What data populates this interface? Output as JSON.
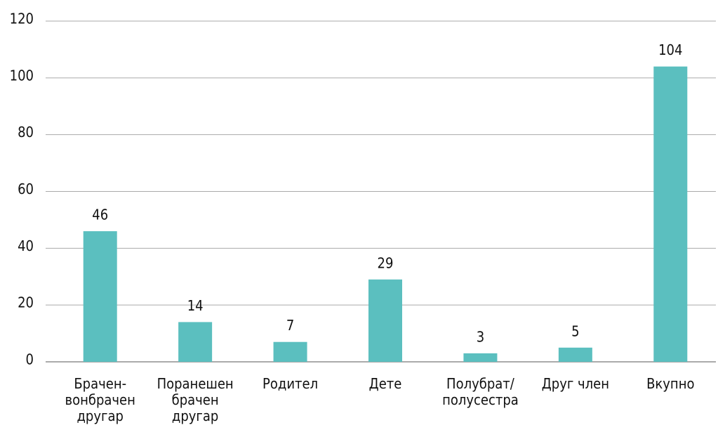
{
  "chart_data": {
    "type": "bar",
    "categories": [
      "Брачен-\nвонбрачен\nдругар",
      "Поранешен\nбрачен\nдругар",
      "Родител",
      "Дете",
      "Полубрат/\nполусестра",
      "Друг член",
      "Вкупно"
    ],
    "values": [
      46,
      14,
      7,
      29,
      3,
      5,
      104
    ],
    "color": "#5bbfbf",
    "ylim": [
      0,
      120
    ],
    "yticks": [
      0,
      20,
      40,
      60,
      80,
      100,
      120
    ],
    "grid": true
  }
}
